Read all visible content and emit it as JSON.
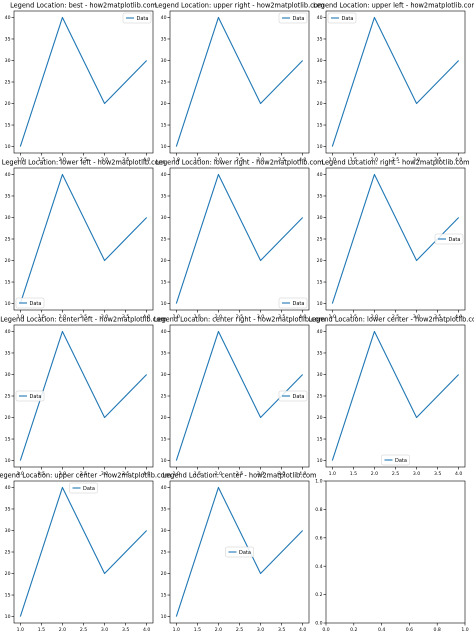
{
  "chart_data": [
    {
      "type": "line",
      "title": "Legend Location: best - how2matplotlib.com",
      "legend_loc": "best",
      "x": [
        1,
        2,
        3,
        4
      ],
      "series": [
        {
          "name": "Data",
          "values": [
            10,
            40,
            20,
            30
          ]
        }
      ],
      "xlim": [
        0.85,
        4.15
      ],
      "ylim": [
        8.5,
        41.5
      ],
      "xticks": [
        "1.0",
        "1.5",
        "2.0",
        "2.5",
        "3.0",
        "3.5",
        "4.0"
      ],
      "yticks": [
        "10",
        "15",
        "20",
        "25",
        "30",
        "35",
        "40"
      ]
    },
    {
      "type": "line",
      "title": "Legend Location: upper right - how2matplotlib.com",
      "legend_loc": "upper right",
      "x": [
        1,
        2,
        3,
        4
      ],
      "series": [
        {
          "name": "Data",
          "values": [
            10,
            40,
            20,
            30
          ]
        }
      ],
      "xlim": [
        0.85,
        4.15
      ],
      "ylim": [
        8.5,
        41.5
      ],
      "xticks": [
        "1.0",
        "1.5",
        "2.0",
        "2.5",
        "3.0",
        "3.5",
        "4.0"
      ],
      "yticks": [
        "10",
        "15",
        "20",
        "25",
        "30",
        "35",
        "40"
      ]
    },
    {
      "type": "line",
      "title": "Legend Location: upper left - how2matplotlib.com",
      "legend_loc": "upper left",
      "x": [
        1,
        2,
        3,
        4
      ],
      "series": [
        {
          "name": "Data",
          "values": [
            10,
            40,
            20,
            30
          ]
        }
      ],
      "xlim": [
        0.85,
        4.15
      ],
      "ylim": [
        8.5,
        41.5
      ],
      "xticks": [
        "1.0",
        "1.5",
        "2.0",
        "2.5",
        "3.0",
        "3.5",
        "4.0"
      ],
      "yticks": [
        "10",
        "15",
        "20",
        "25",
        "30",
        "35",
        "40"
      ]
    },
    {
      "type": "line",
      "title": "Legend Location: lower left - how2matplotlib.com",
      "legend_loc": "lower left",
      "x": [
        1,
        2,
        3,
        4
      ],
      "series": [
        {
          "name": "Data",
          "values": [
            10,
            40,
            20,
            30
          ]
        }
      ],
      "xlim": [
        0.85,
        4.15
      ],
      "ylim": [
        8.5,
        41.5
      ],
      "xticks": [
        "1.0",
        "1.5",
        "2.0",
        "2.5",
        "3.0",
        "3.5",
        "4.0"
      ],
      "yticks": [
        "10",
        "15",
        "20",
        "25",
        "30",
        "35",
        "40"
      ]
    },
    {
      "type": "line",
      "title": "Legend Location: lower right - how2matplotlib.com",
      "legend_loc": "lower right",
      "x": [
        1,
        2,
        3,
        4
      ],
      "series": [
        {
          "name": "Data",
          "values": [
            10,
            40,
            20,
            30
          ]
        }
      ],
      "xlim": [
        0.85,
        4.15
      ],
      "ylim": [
        8.5,
        41.5
      ],
      "xticks": [
        "1.0",
        "1.5",
        "2.0",
        "2.5",
        "3.0",
        "3.5",
        "4.0"
      ],
      "yticks": [
        "10",
        "15",
        "20",
        "25",
        "30",
        "35",
        "40"
      ]
    },
    {
      "type": "line",
      "title": "Legend Location: right - how2matplotlib.com",
      "legend_loc": "right",
      "x": [
        1,
        2,
        3,
        4
      ],
      "series": [
        {
          "name": "Data",
          "values": [
            10,
            40,
            20,
            30
          ]
        }
      ],
      "xlim": [
        0.85,
        4.15
      ],
      "ylim": [
        8.5,
        41.5
      ],
      "xticks": [
        "1.0",
        "1.5",
        "2.0",
        "2.5",
        "3.0",
        "3.5",
        "4.0"
      ],
      "yticks": [
        "10",
        "15",
        "20",
        "25",
        "30",
        "35",
        "40"
      ]
    },
    {
      "type": "line",
      "title": "Legend Location: center left - how2matplotlib.com",
      "legend_loc": "center left",
      "x": [
        1,
        2,
        3,
        4
      ],
      "series": [
        {
          "name": "Data",
          "values": [
            10,
            40,
            20,
            30
          ]
        }
      ],
      "xlim": [
        0.85,
        4.15
      ],
      "ylim": [
        8.5,
        41.5
      ],
      "xticks": [
        "1.0",
        "1.5",
        "2.0",
        "2.5",
        "3.0",
        "3.5",
        "4.0"
      ],
      "yticks": [
        "10",
        "15",
        "20",
        "25",
        "30",
        "35",
        "40"
      ]
    },
    {
      "type": "line",
      "title": "Legend Location: center right - how2matplotlib.com",
      "legend_loc": "center right",
      "x": [
        1,
        2,
        3,
        4
      ],
      "series": [
        {
          "name": "Data",
          "values": [
            10,
            40,
            20,
            30
          ]
        }
      ],
      "xlim": [
        0.85,
        4.15
      ],
      "ylim": [
        8.5,
        41.5
      ],
      "xticks": [
        "1.0",
        "1.5",
        "2.0",
        "2.5",
        "3.0",
        "3.5",
        "4.0"
      ],
      "yticks": [
        "10",
        "15",
        "20",
        "25",
        "30",
        "35",
        "40"
      ]
    },
    {
      "type": "line",
      "title": "Legend Location: lower center - how2matplotlib.com",
      "legend_loc": "lower center",
      "x": [
        1,
        2,
        3,
        4
      ],
      "series": [
        {
          "name": "Data",
          "values": [
            10,
            40,
            20,
            30
          ]
        }
      ],
      "xlim": [
        0.85,
        4.15
      ],
      "ylim": [
        8.5,
        41.5
      ],
      "xticks": [
        "1.0",
        "1.5",
        "2.0",
        "2.5",
        "3.0",
        "3.5",
        "4.0"
      ],
      "yticks": [
        "10",
        "15",
        "20",
        "25",
        "30",
        "35",
        "40"
      ]
    },
    {
      "type": "line",
      "title": "Legend Location: upper center - how2matplotlib.com",
      "legend_loc": "upper center",
      "x": [
        1,
        2,
        3,
        4
      ],
      "series": [
        {
          "name": "Data",
          "values": [
            10,
            40,
            20,
            30
          ]
        }
      ],
      "xlim": [
        0.85,
        4.15
      ],
      "ylim": [
        8.5,
        41.5
      ],
      "xticks": [
        "1.0",
        "1.5",
        "2.0",
        "2.5",
        "3.0",
        "3.5",
        "4.0"
      ],
      "yticks": [
        "10",
        "15",
        "20",
        "25",
        "30",
        "35",
        "40"
      ]
    },
    {
      "type": "line",
      "title": "Legend Location: center - how2matplotlib.com",
      "legend_loc": "center",
      "x": [
        1,
        2,
        3,
        4
      ],
      "series": [
        {
          "name": "Data",
          "values": [
            10,
            40,
            20,
            30
          ]
        }
      ],
      "xlim": [
        0.85,
        4.15
      ],
      "ylim": [
        8.5,
        41.5
      ],
      "xticks": [
        "1.0",
        "1.5",
        "2.0",
        "2.5",
        "3.0",
        "3.5",
        "4.0"
      ],
      "yticks": [
        "10",
        "15",
        "20",
        "25",
        "30",
        "35",
        "40"
      ]
    },
    {
      "type": "line",
      "title": "",
      "empty": true,
      "x": [],
      "series": [],
      "xlim": [
        0,
        1
      ],
      "ylim": [
        0,
        1
      ],
      "xticks": [
        "0.0",
        "0.2",
        "0.4",
        "0.6",
        "0.8",
        "1.0"
      ],
      "yticks": [
        "0.0",
        "0.2",
        "0.4",
        "0.6",
        "0.8",
        "1.0"
      ]
    }
  ],
  "colors": {
    "line": "#1f77b4",
    "axis": "#000000",
    "legend_border": "#cccccc"
  }
}
